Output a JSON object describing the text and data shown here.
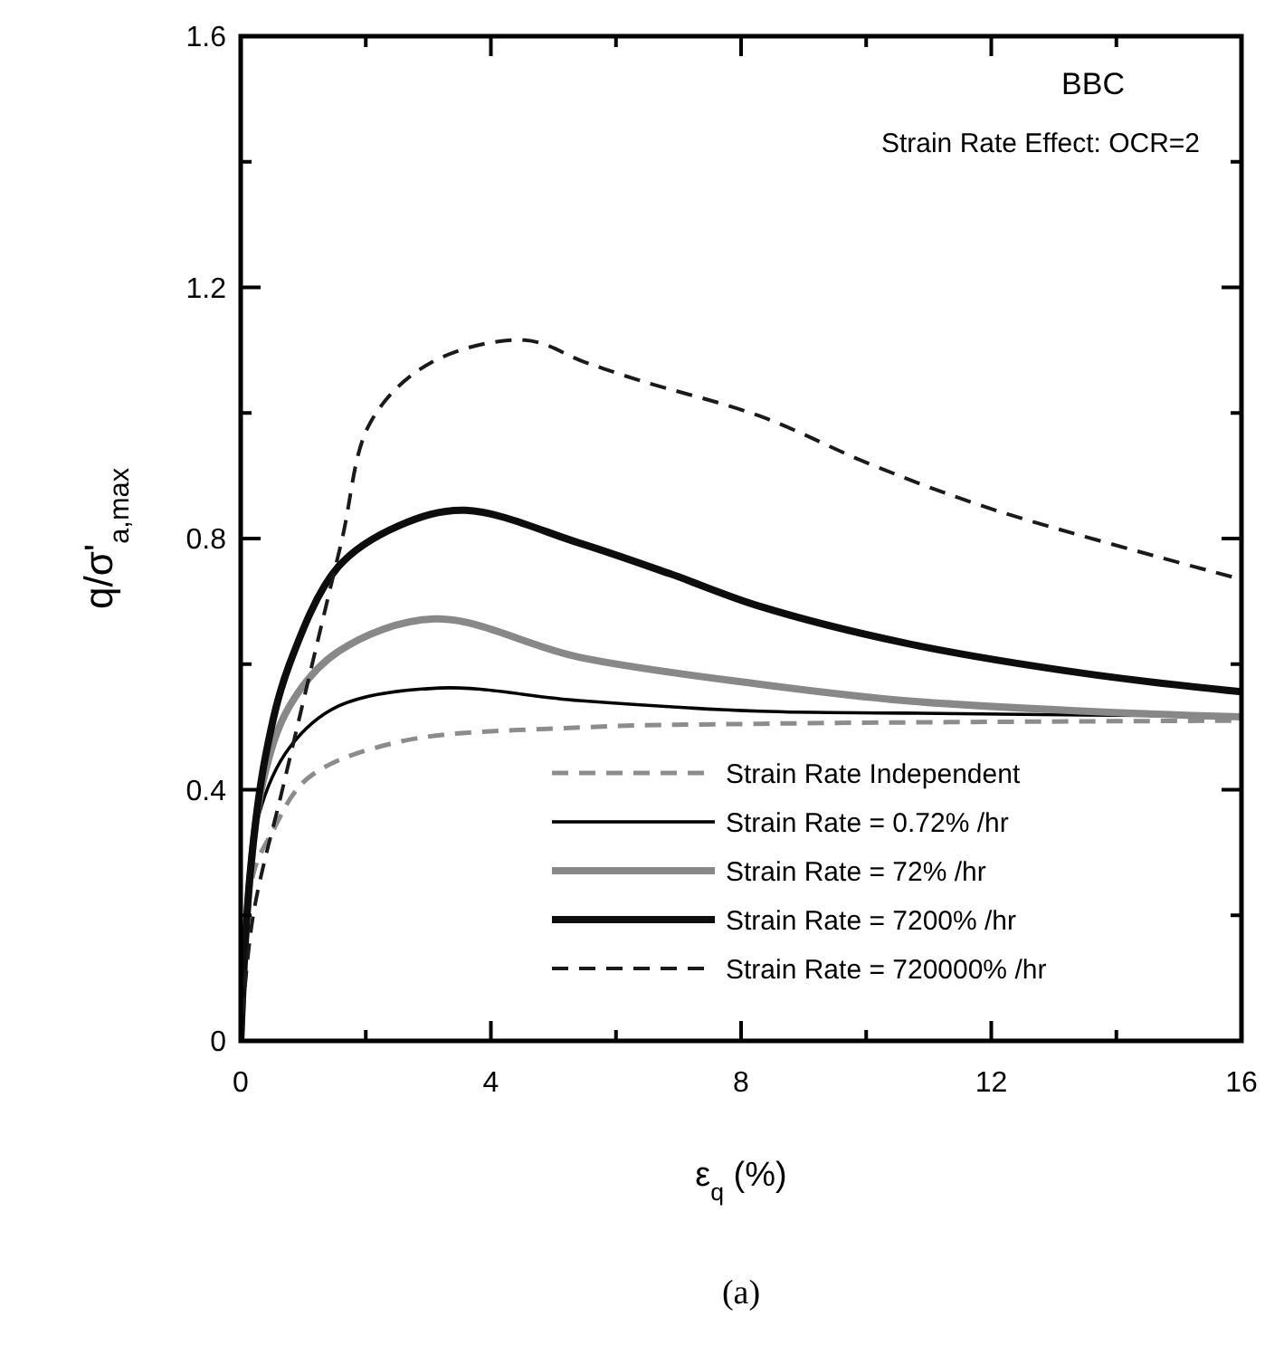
{
  "chart_data": {
    "type": "line",
    "title": "BBC",
    "subtitle": "Strain Rate Effect: OCR=2",
    "xlabel": "ε$_{q}$ (%)",
    "ylabel": "q/σ'$_{a,max}$",
    "annotations": [
      "(a)"
    ],
    "xlim": [
      0,
      16
    ],
    "ylim": [
      0,
      1.6
    ],
    "xticks": [
      0,
      {
        "value": 2,
        "label": null
      },
      4,
      {
        "value": 6,
        "label": null
      },
      8,
      {
        "value": 10,
        "label": null
      },
      12,
      {
        "value": 14,
        "label": null
      },
      16
    ],
    "yticks": [
      0,
      {
        "value": 0.2,
        "label": null
      },
      0.4,
      {
        "value": 0.6,
        "label": null
      },
      0.8,
      {
        "value": 1.0,
        "label": null
      },
      1.2,
      {
        "value": 1.4,
        "label": null
      },
      1.6
    ],
    "grid": false,
    "legend": "bottom right",
    "marker": "none",
    "series": [
      {
        "name": "Strain Rate Independent",
        "color": "#8c8c8c",
        "line_style": "dashed",
        "x": [
          0,
          0.2,
          0.49,
          1.07,
          2.52,
          5.41,
          8.3,
          12,
          16
        ],
        "values": [
          0,
          0.265,
          0.33,
          0.418,
          0.476,
          0.499,
          0.505,
          0.508,
          0.51
        ]
      },
      {
        "name": "Strain Rate = 0.72% /hr",
        "color": "#000000",
        "line_style": "solid",
        "x": [
          0,
          0.1,
          0.29,
          0.78,
          1.56,
          3.18,
          5.41,
          8.3,
          10.6,
          13.5,
          16
        ],
        "values": [
          0,
          0.2,
          0.36,
          0.467,
          0.533,
          0.562,
          0.542,
          0.525,
          0.522,
          0.519,
          0.517
        ]
      },
      {
        "name": "Strain Rate = 72% /hr",
        "color": "#888888",
        "line_style": "solid",
        "x": [
          0,
          0.1,
          0.35,
          0.78,
          1.56,
          3.1,
          5.41,
          8.3,
          10.6,
          13.5,
          16
        ],
        "values": [
          0,
          0.2,
          0.41,
          0.533,
          0.62,
          0.672,
          0.611,
          0.568,
          0.542,
          0.525,
          0.516
        ]
      },
      {
        "name": "Strain Rate = 7200% /hr",
        "color": "#0d0d0d",
        "line_style": "solid",
        "x": [
          0,
          0.15,
          0.4,
          0.78,
          1.56,
          2.52,
          3.59,
          5.41,
          6.86,
          8.3,
          10.6,
          13.5,
          16
        ],
        "values": [
          0,
          0.265,
          0.455,
          0.6,
          0.755,
          0.82,
          0.845,
          0.793,
          0.744,
          0.692,
          0.634,
          0.585,
          0.556
        ]
      },
      {
        "name": "Strain Rate = 720000% /hr",
        "color": "#1a1a1a",
        "line_style": "dashed",
        "x": [
          0,
          0.2,
          0.69,
          1.6,
          2.08,
          3.04,
          4.54,
          5.5,
          6.37,
          8.3,
          10.1,
          12.07,
          16
        ],
        "values": [
          0,
          0.2,
          0.41,
          0.79,
          0.986,
          1.08,
          1.116,
          1.081,
          1.052,
          0.995,
          0.917,
          0.845,
          0.735
        ]
      }
    ]
  }
}
